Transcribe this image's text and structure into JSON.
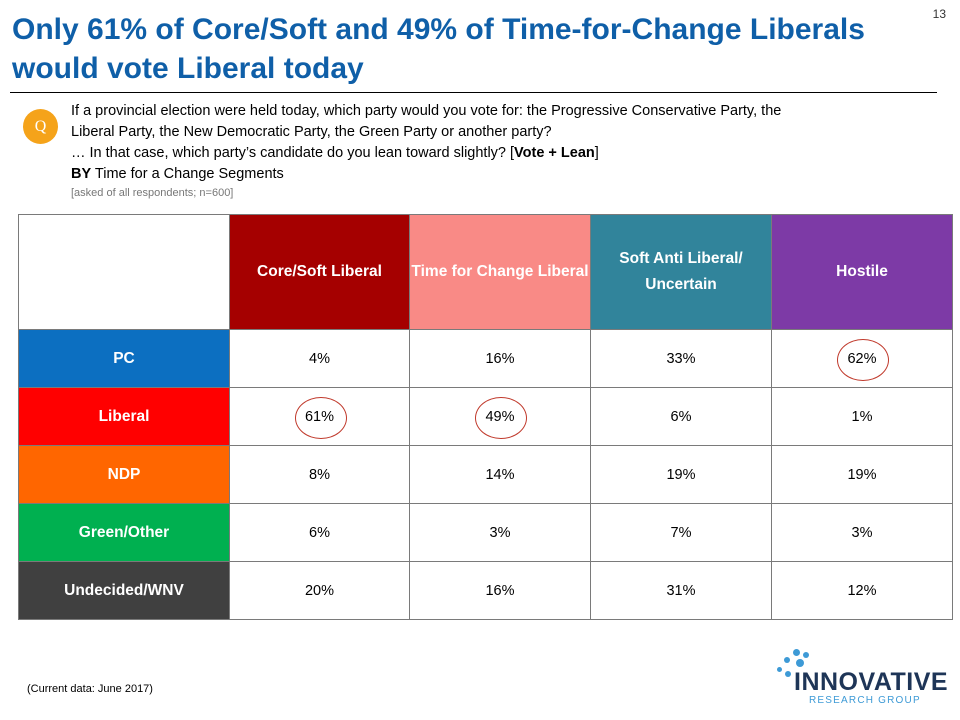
{
  "slide": {
    "title": "Only 61% of Core/Soft and 49% of Time-for-Change Liberals would vote Liberal today",
    "page_number": "13"
  },
  "question": {
    "badge": "Q",
    "line1": "If a provincial election were held today, which party would you vote for: the Progressive Conservative Party, the",
    "line2": "Liberal Party, the New Democratic Party, the Green Party or another party?",
    "line3_prefix": "… In that case, which party’s candidate do you lean toward slightly? [",
    "line3_bold": "Vote + Lean",
    "line3_suffix": "]",
    "line4_bold": "BY",
    "line4_rest": " Time for a Change Segments",
    "note": "[asked of all respondents; n=600]"
  },
  "table": {
    "columns": [
      {
        "label": "Core/Soft  Liberal",
        "color": "#a50000"
      },
      {
        "label": "Time for Change Liberal",
        "color": "#f98a86"
      },
      {
        "label": "Soft Anti Liberal/ Uncertain",
        "color": "#31849b"
      },
      {
        "label": "Hostile",
        "color": "#7d3aa6"
      }
    ],
    "rows": [
      {
        "label": "PC",
        "color": "#0c6fc1",
        "values": [
          "4%",
          "16%",
          "33%",
          "62%"
        ]
      },
      {
        "label": "Liberal",
        "color": "#ff0000",
        "values": [
          "61%",
          "49%",
          "6%",
          "1%"
        ]
      },
      {
        "label": "NDP",
        "color": "#ff6600",
        "values": [
          "8%",
          "14%",
          "19%",
          "19%"
        ]
      },
      {
        "label": "Green/Other",
        "color": "#00b050",
        "values": [
          "6%",
          "3%",
          "7%",
          "3%"
        ]
      },
      {
        "label": "Undecided/WNV",
        "color": "#404040",
        "values": [
          "20%",
          "16%",
          "31%",
          "12%"
        ]
      }
    ],
    "highlighted_cells": [
      [
        0,
        3
      ],
      [
        1,
        0
      ],
      [
        1,
        1
      ]
    ]
  },
  "footnote": "(Current data: June 2017)",
  "logo": {
    "name": "INNOVATIVE",
    "subtitle": "RESEARCH GROUP",
    "color_dark": "#1e3557",
    "color_accent": "#3d9ad6"
  }
}
